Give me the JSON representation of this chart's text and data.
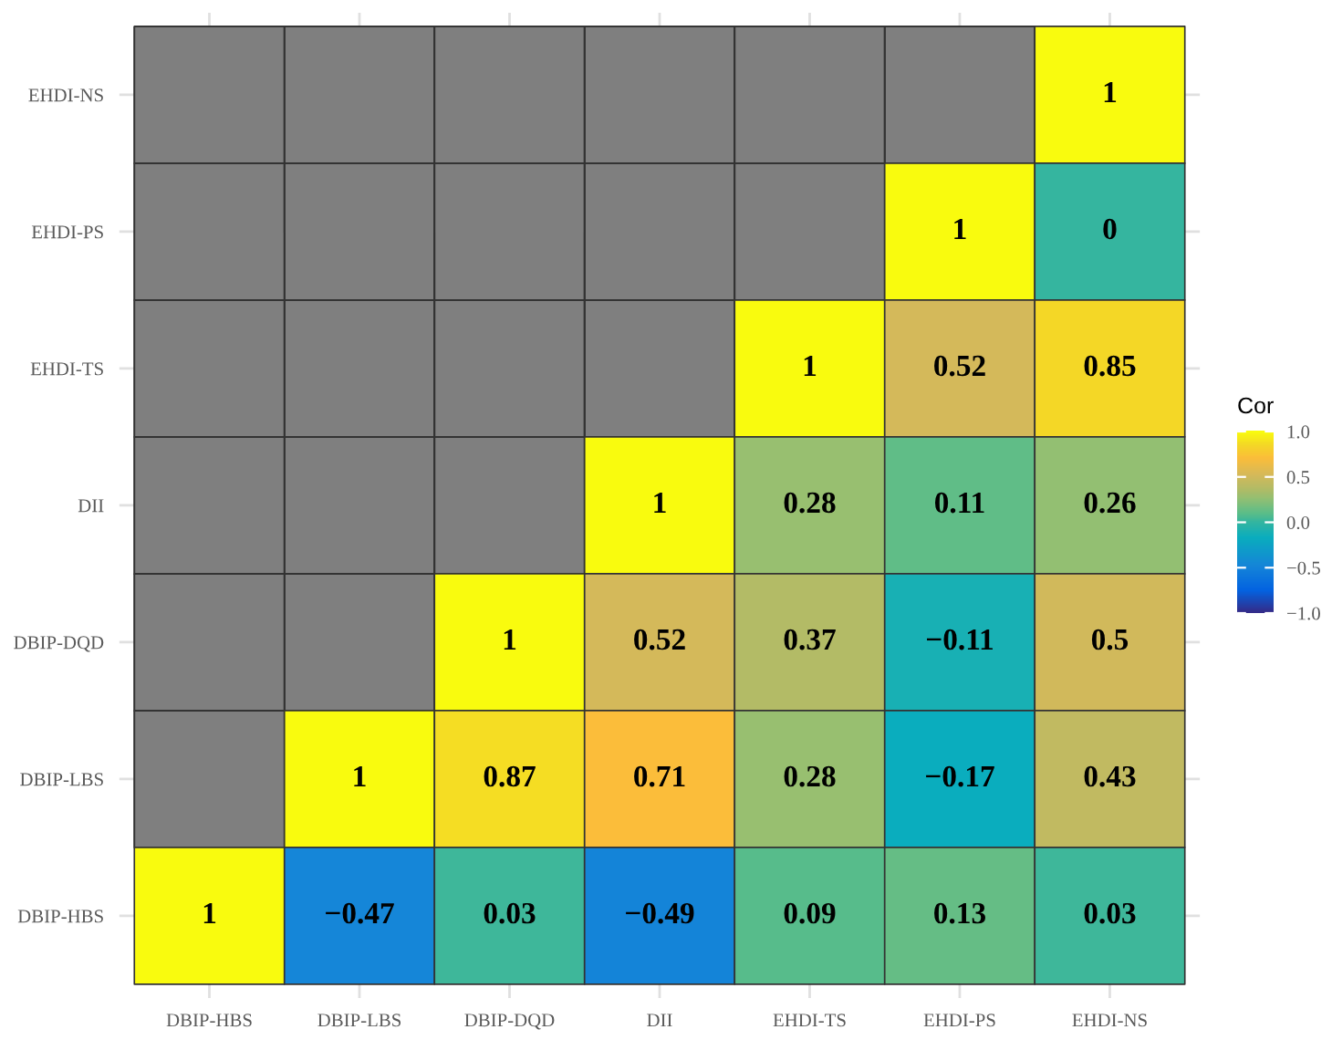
{
  "chart_data": {
    "type": "heatmap",
    "categories": [
      "DBIP-HBS",
      "DBIP-LBS",
      "DBIP-DQD",
      "DII",
      "EHDI-TS",
      "EHDI-PS",
      "EHDI-NS"
    ],
    "y_categories": [
      "EHDI-NS",
      "EHDI-PS",
      "EHDI-TS",
      "DII",
      "DBIP-DQD",
      "DBIP-LBS",
      "DBIP-HBS"
    ],
    "cells": [
      [
        null,
        null,
        null,
        null,
        null,
        null,
        1
      ],
      [
        null,
        null,
        null,
        null,
        null,
        1,
        0
      ],
      [
        null,
        null,
        null,
        null,
        1,
        0.52,
        0.85
      ],
      [
        null,
        null,
        null,
        1,
        0.28,
        0.11,
        0.26
      ],
      [
        null,
        null,
        1,
        0.52,
        0.37,
        -0.11,
        0.5
      ],
      [
        null,
        1,
        0.87,
        0.71,
        0.28,
        -0.17,
        0.43
      ],
      [
        1,
        -0.47,
        0.03,
        -0.49,
        0.09,
        0.13,
        0.03
      ]
    ],
    "data_labels": true,
    "clabel": "Cor",
    "clim": [
      -1,
      1
    ],
    "cticks": [
      {
        "value": -1,
        "label": "−1.0"
      },
      {
        "value": -0.5,
        "label": "−0.5"
      },
      {
        "value": 0,
        "label": "0.0"
      },
      {
        "value": 0.5,
        "label": "0.5"
      },
      {
        "value": 1,
        "label": "1.0"
      }
    ],
    "grid": true
  }
}
